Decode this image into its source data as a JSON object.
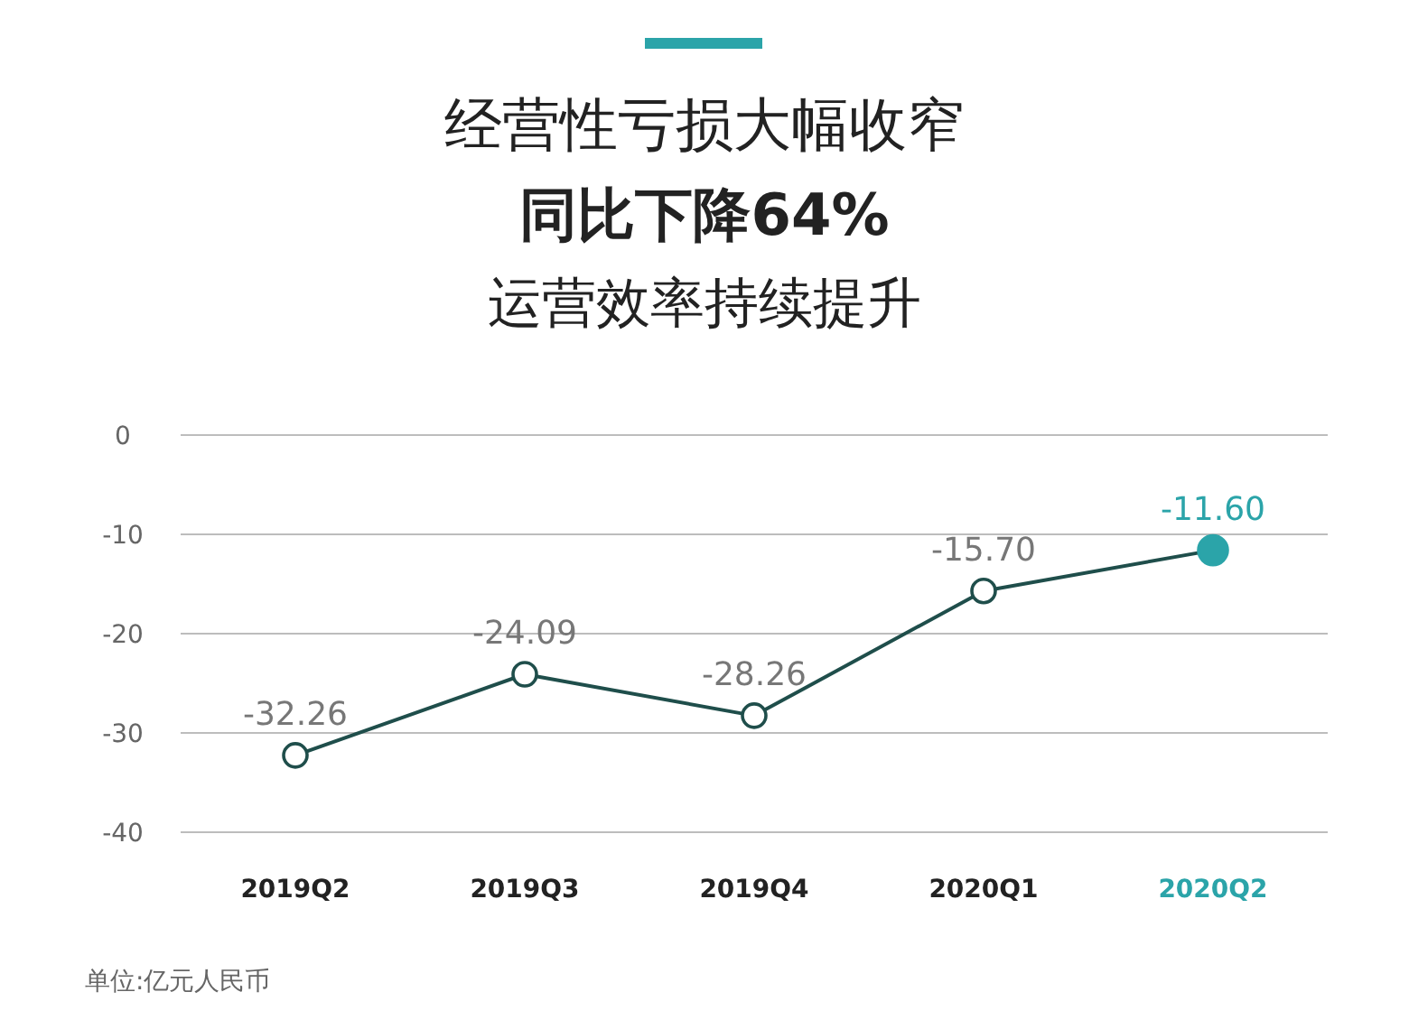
{
  "chart_data": {
    "type": "line",
    "title": "经营性亏损大幅收窄",
    "subtitle": "同比下降64%\n运营效率持续提升",
    "categories": [
      "2019Q2",
      "2019Q3",
      "2019Q4",
      "2020Q1",
      "2020Q2"
    ],
    "series": [
      {
        "color": "#1f4e4b",
        "colors": [
          "#ffffff",
          "#ffffff",
          "#ffffff",
          "#ffffff",
          "#2ba4a9"
        ],
        "values": [
          -32.26,
          -24.09,
          -28.26,
          -15.7,
          -11.6
        ],
        "value_labels": [
          "-32.26",
          "-24.09",
          "-28.26",
          "-15.70",
          "-11.60"
        ]
      }
    ],
    "ylim": [
      -40,
      0
    ],
    "yticks": [
      0,
      -10,
      -20,
      -30,
      -40
    ],
    "grid": "y",
    "marker": "circle",
    "line_style": "solid",
    "annotations": [
      "单位:亿元人民币"
    ]
  }
}
